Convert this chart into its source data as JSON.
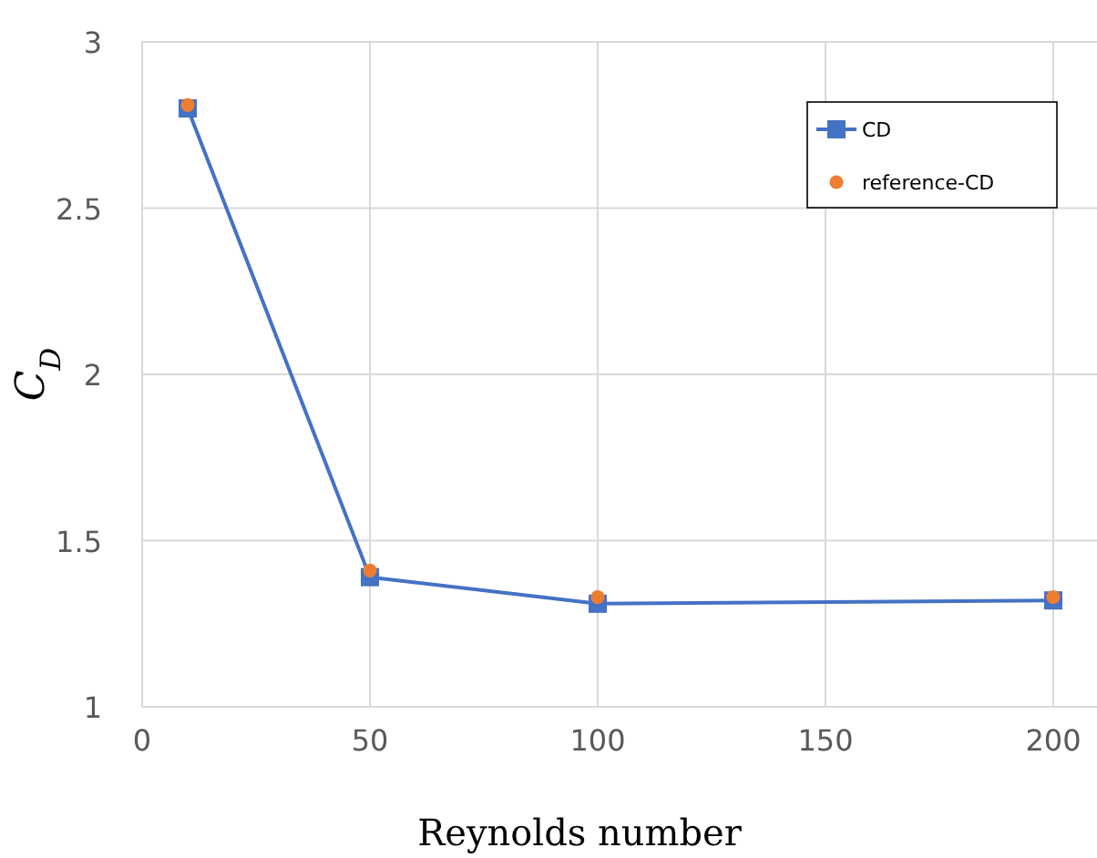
{
  "chart_data": {
    "type": "line",
    "xlabel": "Reynolds number",
    "ylabel": "C$_{D}$",
    "x": [
      10,
      50,
      100,
      200
    ],
    "series": [
      {
        "name": "CD",
        "color": "#4472c4",
        "marker": "square",
        "values": [
          2.8,
          1.39,
          1.31,
          1.32
        ]
      },
      {
        "name": "reference-CD",
        "type": "scatter",
        "color": "#ed7d31",
        "marker": "circle",
        "values": [
          2.81,
          1.41,
          1.33,
          1.33
        ]
      }
    ],
    "xlim": [
      0,
      210
    ],
    "xticks": [
      0,
      50,
      100,
      150,
      200
    ],
    "ylim": [
      1,
      3
    ],
    "yticks": [
      1,
      1.5,
      2,
      2.5,
      3
    ],
    "grid": true,
    "legend": "top right"
  }
}
